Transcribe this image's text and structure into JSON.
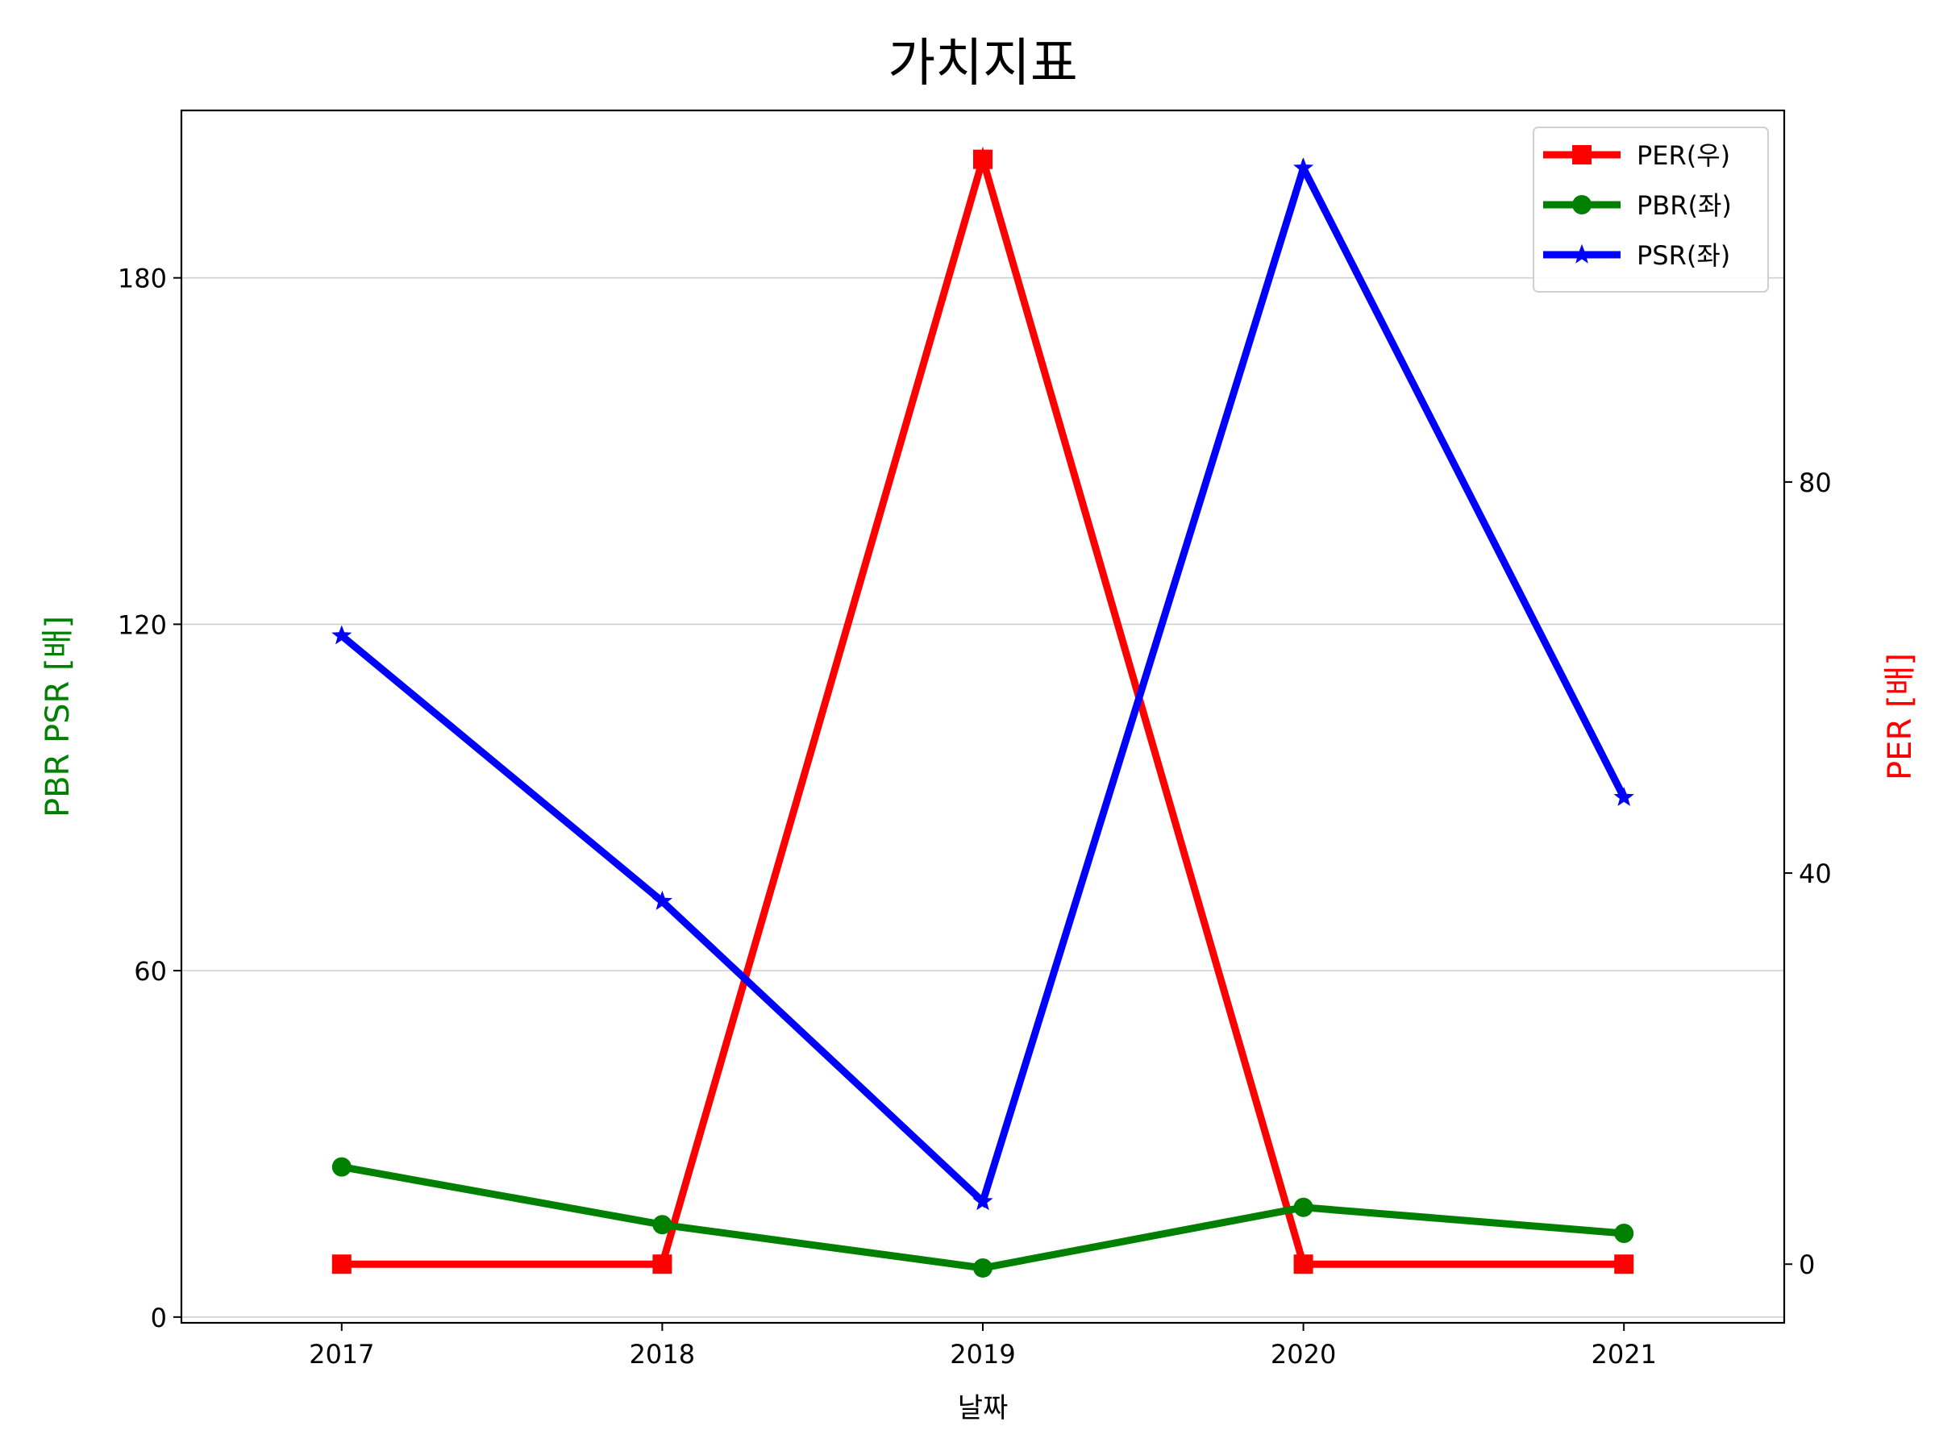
{
  "chart_data": {
    "type": "line",
    "title": "가치지표",
    "xlabel": "날짜",
    "ylabel_left": "PBR PSR [배]",
    "ylabel_right": "PER [배]",
    "categories": [
      "2017",
      "2018",
      "2019",
      "2020",
      "2021"
    ],
    "y_left": {
      "lim": [
        -1,
        209
      ],
      "ticks": [
        0,
        60,
        120,
        180
      ]
    },
    "y_right": {
      "lim": [
        -6,
        118
      ],
      "ticks": [
        0,
        40,
        80
      ]
    },
    "grid": "horizontal-left",
    "legend_position": "top-right",
    "series": [
      {
        "name": "PER(우)",
        "axis": "right",
        "marker": "square",
        "color": "#ff0000",
        "values": [
          0,
          0,
          113,
          0,
          0
        ]
      },
      {
        "name": "PBR(좌)",
        "axis": "left",
        "marker": "circle",
        "color": "#008000",
        "values": [
          26,
          16,
          8.5,
          19,
          14.5
        ]
      },
      {
        "name": "PSR(좌)",
        "axis": "left",
        "marker": "star",
        "color": "#0000ff",
        "values": [
          118,
          72,
          20,
          199,
          90
        ]
      }
    ],
    "ylabel_left_color": "#008000",
    "ylabel_right_color": "#ff0000"
  }
}
